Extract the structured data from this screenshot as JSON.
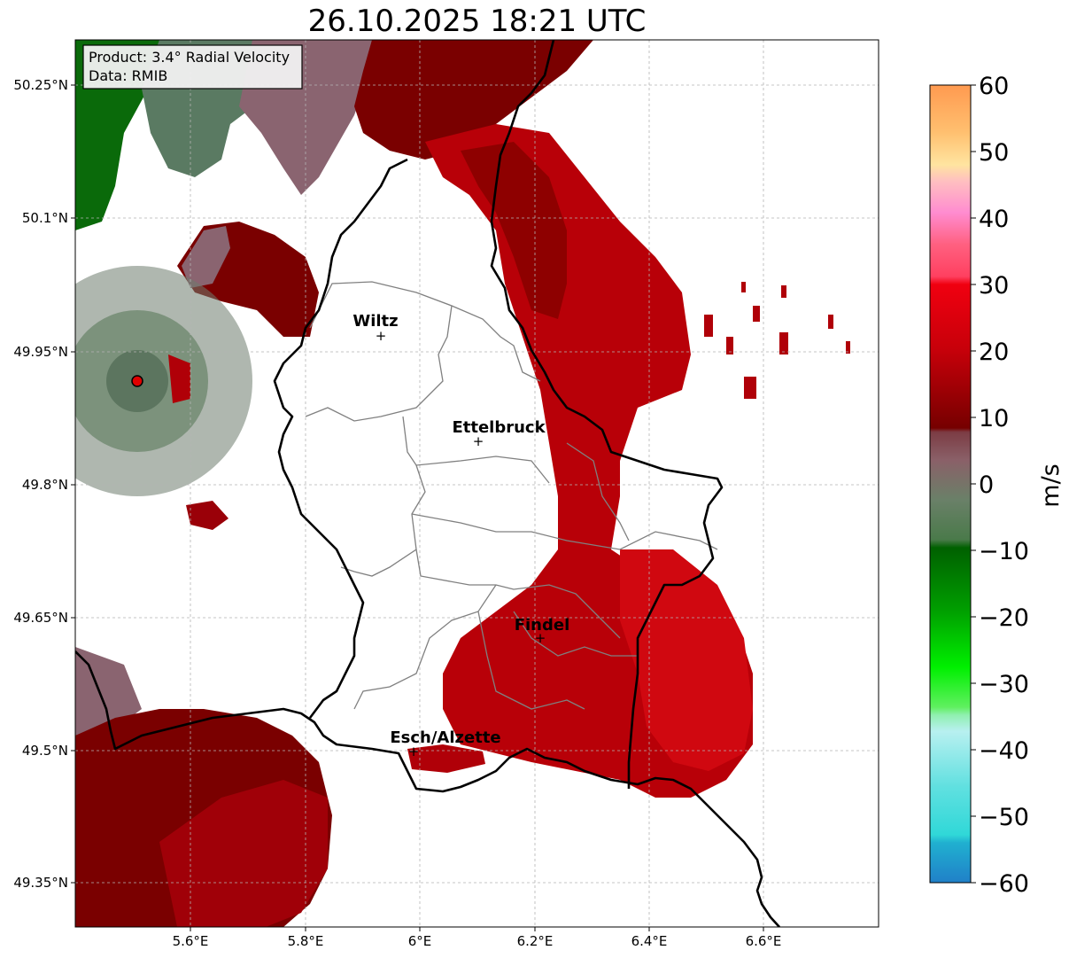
{
  "title": "26.10.2025 18:21 UTC",
  "info_box": {
    "product": "Product: 3.4° Radial Velocity",
    "source": "Data: RMIB"
  },
  "lat_ticks": [
    "50.25°N",
    "50.1°N",
    "49.95°N",
    "49.8°N",
    "49.65°N",
    "49.5°N",
    "49.35°N"
  ],
  "lon_ticks": [
    "5.6°E",
    "5.8°E",
    "6°E",
    "6.2°E",
    "6.4°E",
    "6.6°E"
  ],
  "cities": [
    {
      "name": "Wiltz",
      "lon": 5.93,
      "lat": 49.97
    },
    {
      "name": "Ettelbruck",
      "lon": 6.1,
      "lat": 49.85
    },
    {
      "name": "Findel",
      "lon": 6.21,
      "lat": 49.63
    },
    {
      "name": "Esch/Alzette",
      "lon": 5.99,
      "lat": 49.5
    }
  ],
  "radar_site": {
    "lon": 5.505,
    "lat": 49.915
  },
  "colorbar": {
    "unit": "m/s",
    "min": -60,
    "max": 60,
    "ticks": [
      "60",
      "50",
      "40",
      "30",
      "20",
      "10",
      "0",
      "−10",
      "−20",
      "−30",
      "−40",
      "−50",
      "−60"
    ]
  },
  "colors": {
    "receding_dark": "#7a0000",
    "receding": "#c00008",
    "near_zero_red": "#8a5c60",
    "near_zero_green": "#5e7d5e",
    "approaching": "#006400",
    "border": "#000000",
    "admin": "#808080"
  }
}
